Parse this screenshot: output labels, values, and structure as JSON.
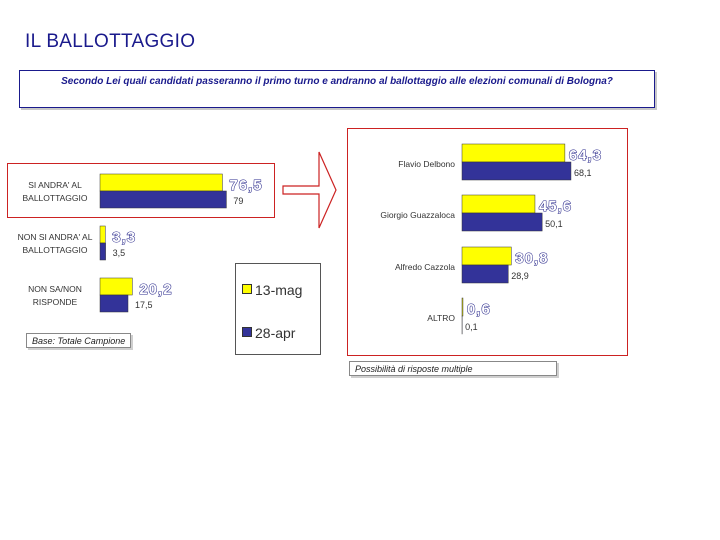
{
  "title": "IL BALLOTTAGGIO",
  "question": "Secondo Lei quali candidati passeranno il primo turno e andranno al ballottaggio alle elezioni comunali di Bologna?",
  "base_note": "Base: Totale Campione",
  "multiple_note": "Possibilità di risposte multiple",
  "colors": {
    "new": "#ffff00",
    "old": "#333399",
    "frame": "#cc2222",
    "title": "#1a1a8c"
  },
  "legend": {
    "new_label": "13-mag",
    "old_label": "28-apr"
  },
  "chart_data": [
    {
      "type": "bar",
      "orientation": "horizontal",
      "categories": [
        [
          "SI ANDRA' AL",
          "BALLOTTAGGIO"
        ],
        [
          "NON SI ANDRA' AL",
          "BALLOTTAGGIO"
        ],
        [
          "NON SA/NON",
          "RISPONDE"
        ]
      ],
      "series": [
        {
          "name": "13-mag",
          "values": [
            76.5,
            3.3,
            20.2
          ],
          "labels": [
            "76,5",
            "3,3",
            "20,2"
          ]
        },
        {
          "name": "28-apr",
          "values": [
            79,
            3.5,
            17.5
          ],
          "labels": [
            "79",
            "3,5",
            "17,5"
          ]
        }
      ]
    },
    {
      "type": "bar",
      "orientation": "horizontal",
      "categories": [
        "Flavio Delbono",
        "Giorgio Guazzaloca",
        "Alfredo Cazzola",
        "ALTRO"
      ],
      "series": [
        {
          "name": "13-mag",
          "values": [
            64.3,
            45.6,
            30.8,
            0.6
          ],
          "labels": [
            "64,3",
            "45,6",
            "30,8",
            "0,6"
          ]
        },
        {
          "name": "28-apr",
          "values": [
            68.1,
            50.1,
            28.9,
            0.1
          ],
          "labels": [
            "68,1",
            "50,1",
            "28,9",
            "0,1"
          ]
        }
      ]
    }
  ]
}
